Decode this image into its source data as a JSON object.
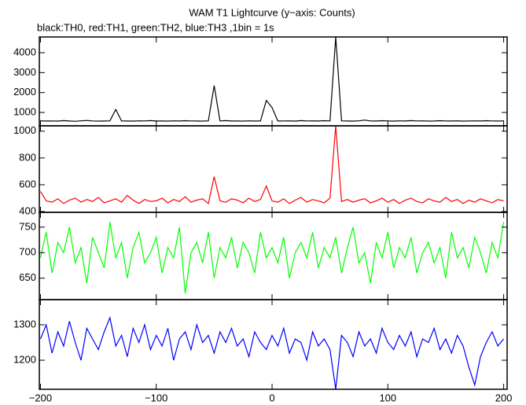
{
  "chart_data": [
    {
      "type": "line",
      "title": "WAM T1 Lightcurve (y−axis: Counts)",
      "subtitle": "black:TH0, red:TH1, green:TH2, blue:TH3 ,1bin = 1s",
      "color": "#000000",
      "x": [
        -200,
        -195,
        -190,
        -185,
        -180,
        -175,
        -170,
        -165,
        -160,
        -155,
        -150,
        -145,
        -140,
        -135,
        -130,
        -125,
        -120,
        -115,
        -110,
        -105,
        -100,
        -95,
        -90,
        -85,
        -80,
        -75,
        -70,
        -65,
        -60,
        -55,
        -50,
        -45,
        -40,
        -35,
        -30,
        -25,
        -20,
        -15,
        -10,
        -5,
        0,
        5,
        10,
        15,
        20,
        25,
        30,
        35,
        40,
        45,
        50,
        55,
        60,
        65,
        70,
        75,
        80,
        85,
        90,
        95,
        100,
        105,
        110,
        115,
        120,
        125,
        130,
        135,
        140,
        145,
        150,
        155,
        160,
        165,
        170,
        175,
        180,
        185,
        190,
        195,
        200
      ],
      "values": [
        580,
        570,
        575,
        565,
        590,
        570,
        560,
        580,
        600,
        575,
        565,
        570,
        580,
        1150,
        575,
        570,
        565,
        580,
        575,
        590,
        570,
        575,
        565,
        580,
        570,
        585,
        575,
        570,
        565,
        580,
        2350,
        575,
        590,
        570,
        575,
        565,
        580,
        570,
        575,
        1600,
        1250,
        570,
        575,
        580,
        565,
        590,
        575,
        580,
        570,
        585,
        575,
        4790,
        580,
        570,
        565,
        580,
        620,
        575,
        570,
        585,
        575,
        565,
        580,
        570,
        590,
        575,
        580,
        565,
        570,
        585,
        575,
        570,
        580,
        565,
        575,
        580,
        570,
        585,
        575,
        570,
        580
      ],
      "xlim": [
        -201,
        203
      ],
      "xticks": [
        {
          "value": -200,
          "label": "−200"
        },
        {
          "value": -100,
          "label": "−100"
        },
        0,
        100,
        200
      ],
      "ylim": [
        330,
        4790
      ],
      "yticks": [
        1000,
        2000,
        3000,
        4000
      ]
    },
    {
      "type": "line",
      "color": "#ff0000",
      "x": [
        -200,
        -195,
        -190,
        -185,
        -180,
        -175,
        -170,
        -165,
        -160,
        -155,
        -150,
        -145,
        -140,
        -135,
        -130,
        -125,
        -120,
        -115,
        -110,
        -105,
        -100,
        -95,
        -90,
        -85,
        -80,
        -75,
        -70,
        -65,
        -60,
        -55,
        -50,
        -45,
        -40,
        -35,
        -30,
        -25,
        -20,
        -15,
        -10,
        -5,
        0,
        5,
        10,
        15,
        20,
        25,
        30,
        35,
        40,
        45,
        50,
        55,
        60,
        65,
        70,
        75,
        80,
        85,
        90,
        95,
        100,
        105,
        110,
        115,
        120,
        125,
        130,
        135,
        140,
        145,
        150,
        155,
        160,
        165,
        170,
        175,
        180,
        185,
        190,
        195,
        200
      ],
      "values": [
        550,
        480,
        470,
        495,
        460,
        485,
        500,
        470,
        490,
        475,
        505,
        465,
        480,
        495,
        470,
        520,
        485,
        460,
        490,
        475,
        480,
        500,
        465,
        490,
        475,
        510,
        470,
        485,
        495,
        460,
        660,
        480,
        470,
        495,
        485,
        465,
        500,
        475,
        490,
        590,
        480,
        470,
        495,
        460,
        485,
        505,
        470,
        490,
        480,
        465,
        500,
        1040,
        475,
        490,
        470,
        485,
        495,
        465,
        480,
        500,
        470,
        490,
        460,
        485,
        500,
        475,
        465,
        495,
        480,
        470,
        505,
        475,
        490,
        460,
        485,
        470,
        495,
        480,
        465,
        490,
        480
      ],
      "xlim": [
        -201,
        203
      ],
      "xticks": [
        {
          "value": -200,
          "label": "−200"
        },
        {
          "value": -100,
          "label": "−100"
        },
        0,
        100,
        200
      ],
      "ylim": [
        394,
        1040
      ],
      "yticks": [
        400,
        600,
        800,
        1000
      ]
    },
    {
      "type": "line",
      "color": "#00ff00",
      "x": [
        -200,
        -195,
        -190,
        -185,
        -180,
        -175,
        -170,
        -165,
        -160,
        -155,
        -150,
        -145,
        -140,
        -135,
        -130,
        -125,
        -120,
        -115,
        -110,
        -105,
        -100,
        -95,
        -90,
        -85,
        -80,
        -75,
        -70,
        -65,
        -60,
        -55,
        -50,
        -45,
        -40,
        -35,
        -30,
        -25,
        -20,
        -15,
        -10,
        -5,
        0,
        5,
        10,
        15,
        20,
        25,
        30,
        35,
        40,
        45,
        50,
        55,
        60,
        65,
        70,
        75,
        80,
        85,
        90,
        95,
        100,
        105,
        110,
        115,
        120,
        125,
        130,
        135,
        140,
        145,
        150,
        155,
        160,
        165,
        170,
        175,
        180,
        185,
        190,
        195,
        200
      ],
      "values": [
        690,
        740,
        660,
        720,
        700,
        750,
        680,
        710,
        640,
        730,
        700,
        670,
        760,
        690,
        720,
        650,
        710,
        740,
        680,
        700,
        730,
        660,
        710,
        690,
        750,
        620,
        700,
        720,
        680,
        740,
        650,
        710,
        690,
        730,
        670,
        720,
        700,
        660,
        740,
        690,
        710,
        680,
        730,
        650,
        700,
        720,
        690,
        740,
        670,
        710,
        690,
        730,
        660,
        710,
        750,
        680,
        700,
        640,
        720,
        690,
        740,
        670,
        710,
        690,
        730,
        660,
        700,
        720,
        680,
        710,
        650,
        740,
        690,
        710,
        670,
        730,
        700,
        660,
        720,
        690,
        760
      ],
      "xlim": [
        -201,
        203
      ],
      "xticks": [
        {
          "value": -200,
          "label": "−200"
        },
        {
          "value": -100,
          "label": "−100"
        },
        0,
        100,
        200
      ],
      "ylim": [
        608,
        779
      ],
      "yticks": [
        650,
        700,
        750
      ]
    },
    {
      "type": "line",
      "color": "#0000ff",
      "x": [
        -200,
        -195,
        -190,
        -185,
        -180,
        -175,
        -170,
        -165,
        -160,
        -155,
        -150,
        -145,
        -140,
        -135,
        -130,
        -125,
        -120,
        -115,
        -110,
        -105,
        -100,
        -95,
        -90,
        -85,
        -80,
        -75,
        -70,
        -65,
        -60,
        -55,
        -50,
        -45,
        -40,
        -35,
        -30,
        -25,
        -20,
        -15,
        -10,
        -5,
        0,
        5,
        10,
        15,
        20,
        25,
        30,
        35,
        40,
        45,
        50,
        55,
        60,
        65,
        70,
        75,
        80,
        85,
        90,
        95,
        100,
        105,
        110,
        115,
        120,
        125,
        130,
        135,
        140,
        145,
        150,
        155,
        160,
        165,
        170,
        175,
        180,
        185,
        190,
        195,
        200
      ],
      "values": [
        1260,
        1300,
        1220,
        1280,
        1240,
        1310,
        1250,
        1200,
        1290,
        1260,
        1230,
        1280,
        1320,
        1240,
        1270,
        1210,
        1290,
        1250,
        1300,
        1230,
        1270,
        1240,
        1290,
        1200,
        1260,
        1280,
        1230,
        1300,
        1250,
        1270,
        1220,
        1280,
        1250,
        1290,
        1240,
        1260,
        1210,
        1280,
        1250,
        1230,
        1270,
        1240,
        1290,
        1220,
        1260,
        1250,
        1200,
        1280,
        1240,
        1260,
        1230,
        1118,
        1270,
        1250,
        1210,
        1280,
        1240,
        1260,
        1220,
        1290,
        1250,
        1230,
        1270,
        1240,
        1280,
        1210,
        1260,
        1250,
        1290,
        1230,
        1260,
        1220,
        1270,
        1240,
        1180,
        1130,
        1210,
        1250,
        1280,
        1240,
        1260
      ],
      "xlim": [
        -201,
        203
      ],
      "xticks": [
        {
          "value": -200,
          "label": "−200"
        },
        {
          "value": -100,
          "label": "−100"
        },
        0,
        100,
        200
      ],
      "ylim": [
        1118,
        1371
      ],
      "yticks": [
        1200,
        1300
      ]
    }
  ]
}
